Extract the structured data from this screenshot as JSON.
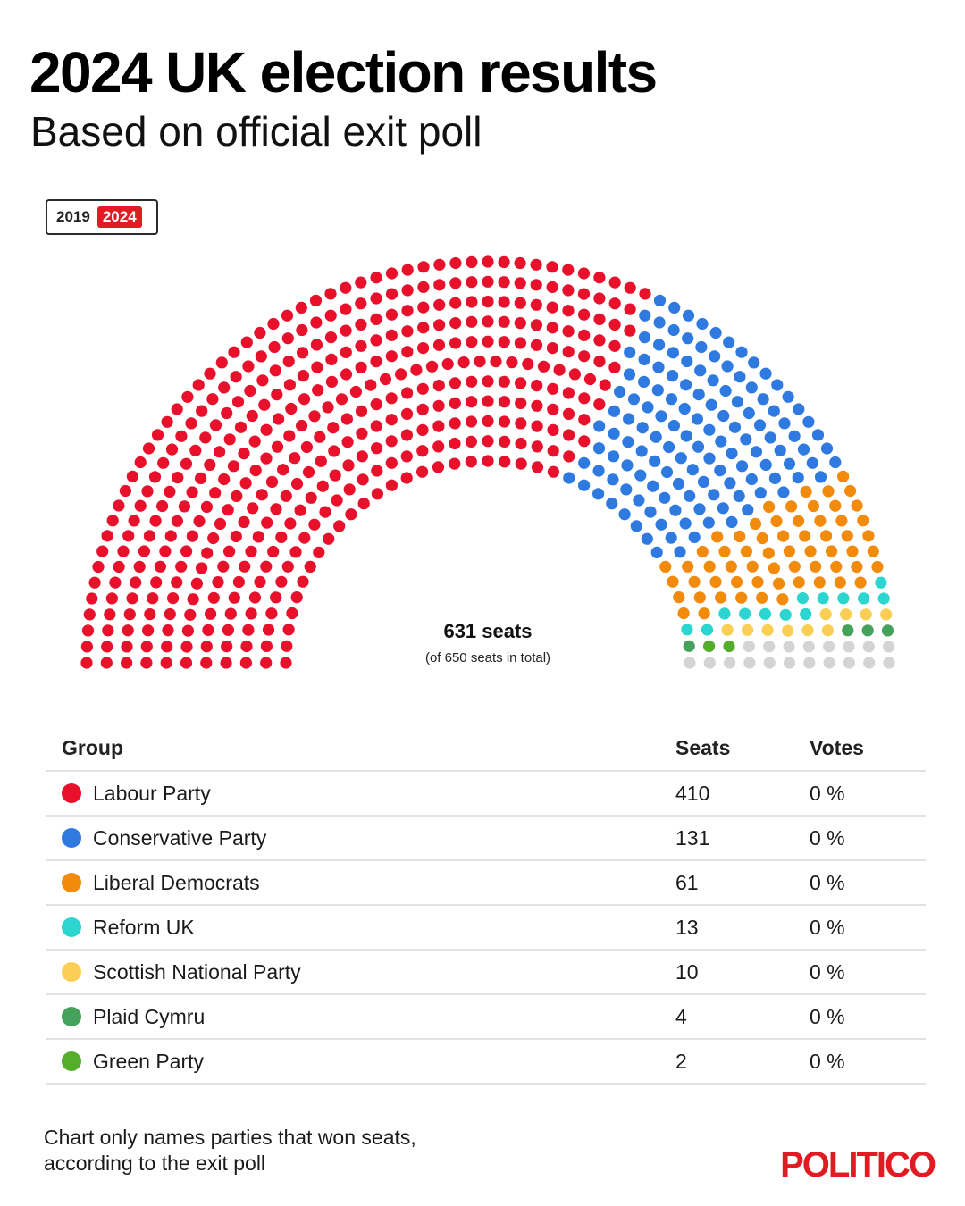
{
  "header": {
    "title": "2024 UK election results",
    "subtitle": "Based on official exit poll"
  },
  "toggle": {
    "options": [
      "2019",
      "2024"
    ],
    "active": "2024",
    "active_color": "#e11b22"
  },
  "chart_data": {
    "type": "parliament",
    "center_label": "631 seats",
    "center_sublabel": "(of 650 seats in total)",
    "total_seats": 650,
    "declared_seats": 631,
    "undeclared_color": "#d4d4d4",
    "series": [
      {
        "name": "Labour Party",
        "seats": 410,
        "votes": "0 %",
        "color": "#e8102b"
      },
      {
        "name": "Conservative Party",
        "seats": 131,
        "votes": "0 %",
        "color": "#2f7ae0"
      },
      {
        "name": "Liberal Democrats",
        "seats": 61,
        "votes": "0 %",
        "color": "#f28a0c"
      },
      {
        "name": "Reform UK",
        "seats": 13,
        "votes": "0 %",
        "color": "#2ad6cf"
      },
      {
        "name": "Scottish National Party",
        "seats": 10,
        "votes": "0 %",
        "color": "#fbcf54"
      },
      {
        "name": "Plaid Cymru",
        "seats": 4,
        "votes": "0 %",
        "color": "#45a25a"
      },
      {
        "name": "Green Party",
        "seats": 2,
        "votes": "0 %",
        "color": "#55ad2c"
      }
    ]
  },
  "table": {
    "headers": {
      "group": "Group",
      "seats": "Seats",
      "votes": "Votes"
    }
  },
  "footer": {
    "note_line1": "Chart only names parties that won seats,",
    "note_line2": "according to the exit poll",
    "logo": "POLITICO",
    "logo_color": "#e11b22"
  }
}
